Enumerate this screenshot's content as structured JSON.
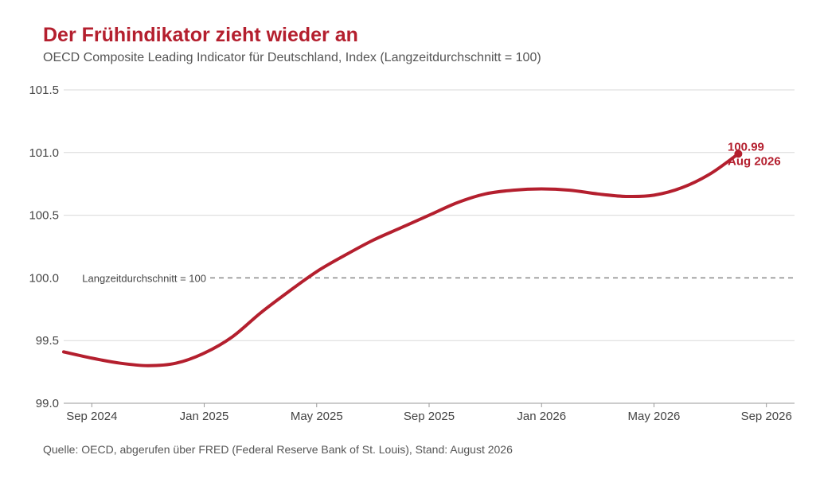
{
  "colors": {
    "accent": "#b41f2e",
    "grid": "#d9d9d9",
    "axis": "#999999",
    "reference": "#888888",
    "text": "#444444"
  },
  "chart_data": {
    "type": "line",
    "title": "Der Frühindikator zieht wieder an",
    "subtitle": "OECD Composite Leading Indicator für Deutschland, Index (Langzeitdurchschnitt = 100)",
    "source": "Quelle: OECD, abgerufen über FRED (Federal Reserve Bank of St. Louis), Stand: August 2026",
    "xlabel": "",
    "ylabel": "",
    "x_range": [
      "2024-08",
      "2026-10"
    ],
    "ylim": [
      99.0,
      101.5
    ],
    "y_ticks": [
      "99.0",
      "99.5",
      "100.0",
      "100.5",
      "101.0",
      "101.5"
    ],
    "x_ticks": [
      {
        "date": "2024-09",
        "label": "Sep 2024"
      },
      {
        "date": "2025-01",
        "label": "Jan 2025"
      },
      {
        "date": "2025-05",
        "label": "May 2025"
      },
      {
        "date": "2025-09",
        "label": "Sep 2025"
      },
      {
        "date": "2026-01",
        "label": "Jan 2026"
      },
      {
        "date": "2026-05",
        "label": "May 2026"
      },
      {
        "date": "2026-09",
        "label": "Sep 2026"
      }
    ],
    "grid": "horizontal",
    "reference_line": {
      "y": 100.0,
      "label": "Langzeitdurchschnitt = 100"
    },
    "series": [
      {
        "x": [
          "2024-08",
          "2024-09",
          "2024-10",
          "2024-11",
          "2024-12",
          "2025-01",
          "2025-02",
          "2025-03",
          "2025-04",
          "2025-05",
          "2025-06",
          "2025-07",
          "2025-08",
          "2025-09",
          "2025-10",
          "2025-11",
          "2025-12",
          "2026-01",
          "2026-02",
          "2026-03",
          "2026-04",
          "2026-05",
          "2026-06",
          "2026-07",
          "2026-08"
        ],
        "values": [
          99.41,
          99.36,
          99.32,
          99.3,
          99.32,
          99.4,
          99.53,
          99.72,
          99.89,
          100.05,
          100.18,
          100.3,
          100.4,
          100.5,
          100.6,
          100.67,
          100.7,
          100.71,
          100.7,
          100.67,
          100.65,
          100.66,
          100.72,
          100.83,
          100.99
        ]
      }
    ],
    "end_annotation": {
      "value": "100.99",
      "date": "Aug 2026"
    }
  }
}
